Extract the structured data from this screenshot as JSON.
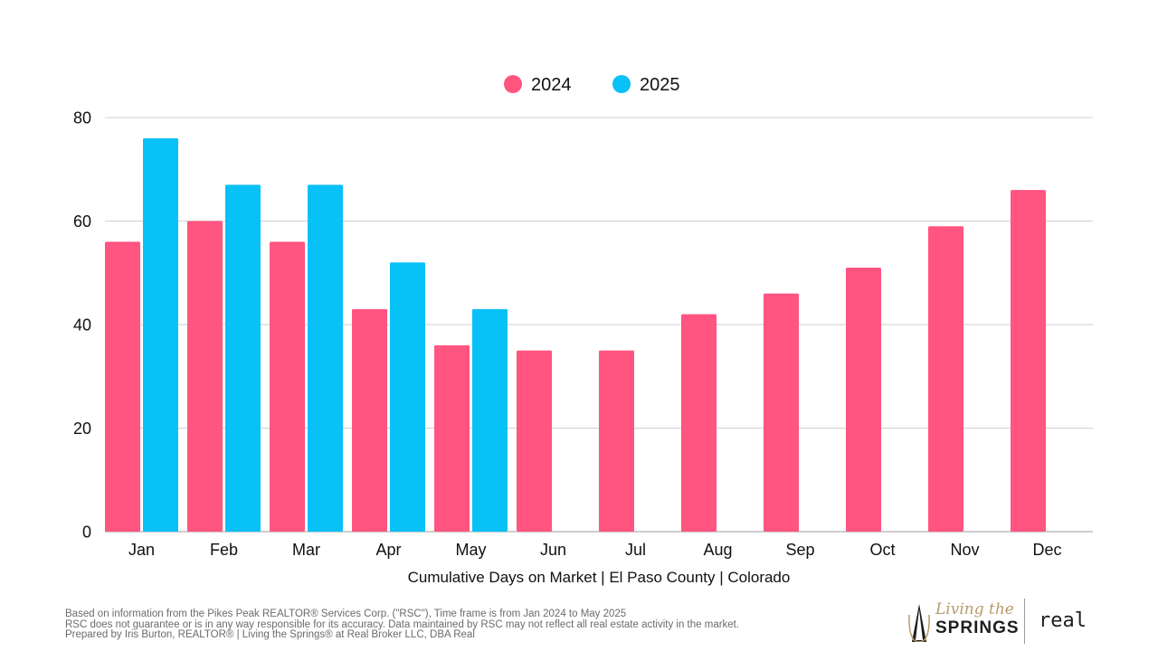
{
  "chart_data": {
    "type": "bar",
    "title": "",
    "xlabel": "Cumulative Days on Market | El Paso County | Colorado",
    "ylabel": "",
    "ylim": [
      0,
      80
    ],
    "yticks": [
      0,
      20,
      40,
      60,
      80
    ],
    "grid": true,
    "legend_position": "top-center",
    "categories": [
      "Jan",
      "Feb",
      "Mar",
      "Apr",
      "May",
      "Jun",
      "Jul",
      "Aug",
      "Sep",
      "Oct",
      "Nov",
      "Dec"
    ],
    "series": [
      {
        "name": "2024",
        "color": "#ff5580",
        "values": [
          56,
          60,
          56,
          43,
          36,
          35,
          35,
          42,
          46,
          51,
          59,
          66
        ]
      },
      {
        "name": "2025",
        "color": "#08c1f7",
        "values": [
          76,
          67,
          67,
          52,
          43,
          null,
          null,
          null,
          null,
          null,
          null,
          null
        ]
      }
    ]
  },
  "footer": {
    "line1": "Based on information from the Pikes Peak REALTOR® Services Corp. (\"RSC\"), Time frame is from Jan 2024 to May 2025",
    "line2": "RSC does not guarantee or is in any way responsible for its accuracy. Data maintained by RSC may not reflect all real estate activity in the market.",
    "line3": "Prepared by Iris Burton, REALTOR® | Living the Springs® at Real Broker LLC, DBA Real"
  },
  "logo": {
    "script_text": "Living the",
    "brand_text": "SPRINGS",
    "partner_text": "real",
    "accent_color": "#b99a6a"
  }
}
